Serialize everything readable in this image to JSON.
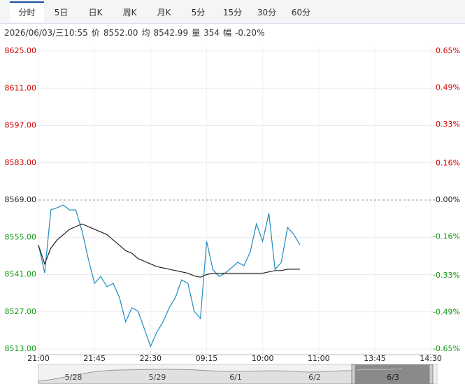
{
  "tabs": [
    "分时",
    "5日",
    "日K",
    "周K",
    "月K",
    "5分",
    "15分",
    "30分",
    "60分"
  ],
  "info": {
    "datetime": "2026/06/03/三10:55",
    "price_label": "价",
    "price": "8552.00",
    "avg_label": "均",
    "avg": "8542.99",
    "volume_label": "量",
    "volume": "354",
    "change_label": "幅",
    "change": "-0.20%"
  },
  "navigator": {
    "dates": [
      "5/28",
      "5/29",
      "6/1",
      "6/2",
      "6/3"
    ]
  },
  "chart_data": {
    "type": "line",
    "x": [
      0,
      5,
      10,
      15,
      20,
      25,
      30,
      35,
      40,
      45,
      50,
      55,
      60,
      65,
      70,
      75,
      80,
      85,
      90,
      95,
      100,
      105,
      110,
      115,
      120,
      125,
      130,
      135,
      140,
      145,
      150,
      155,
      160,
      165,
      170,
      175,
      180,
      185,
      190,
      195,
      200,
      205,
      210
    ],
    "series": [
      {
        "color": "#1f8ac0",
        "values": [
          8552.2,
          8541.6,
          8565.3,
          8566.1,
          8567.1,
          8565.3,
          8565.3,
          8557.4,
          8546.9,
          8537.7,
          8540.3,
          8536.4,
          8537.7,
          8532.4,
          8523.2,
          8528.5,
          8527.2,
          8520.6,
          8514.0,
          8519.3,
          8523.2,
          8528.5,
          8532.4,
          8539.0,
          8537.7,
          8527.2,
          8524.5,
          8553.5,
          8542.9,
          8540.3,
          8541.6,
          8543.5,
          8545.6,
          8544.3,
          8549.5,
          8560.0,
          8553.5,
          8564.0,
          8542.9,
          8545.6,
          8558.7,
          8556.1,
          8552.1
        ]
      },
      {
        "color": "#222222",
        "values": [
          8552,
          8545,
          8551,
          8554,
          8556,
          8558,
          8559,
          8560,
          8559,
          8558,
          8557,
          8556,
          8554,
          8552,
          8550,
          8549,
          8547,
          8546,
          8545,
          8544,
          8543.5,
          8543,
          8542.5,
          8542,
          8541.5,
          8540.5,
          8540,
          8541,
          8541.5,
          8541.5,
          8541.5,
          8541.5,
          8541.5,
          8541.5,
          8541.5,
          8541.5,
          8541.5,
          8542,
          8542.5,
          8542.5,
          8543,
          8543,
          8543
        ]
      }
    ],
    "xlim": [
      0,
      320
    ],
    "xticks": [
      {
        "value": 0,
        "label": "21:00"
      },
      {
        "value": 45,
        "label": "21:45"
      },
      {
        "value": 90,
        "label": "22:30"
      },
      {
        "value": 135,
        "label": "09:15"
      },
      {
        "value": 180,
        "label": "10:00"
      },
      {
        "value": 225,
        "label": "11:00"
      },
      {
        "value": 270,
        "label": "13:45"
      },
      {
        "value": 315,
        "label": "14:30"
      }
    ],
    "ylim": [
      8513,
      8625
    ],
    "yticks": [
      {
        "value": 8625,
        "label": "8625.00"
      },
      {
        "value": 8611,
        "label": "8611.00"
      },
      {
        "value": 8597,
        "label": "8597.00"
      },
      {
        "value": 8583,
        "label": "8583.00"
      },
      {
        "value": 8569,
        "label": "8569.00"
      },
      {
        "value": 8555,
        "label": "8555.00"
      },
      {
        "value": 8541,
        "label": "8541.00"
      },
      {
        "value": 8527,
        "label": "8527.00"
      },
      {
        "value": 8513,
        "label": "8513.00"
      }
    ],
    "y2lim": [
      -0.65,
      0.65
    ],
    "y2ticks": [
      {
        "value": 0.65,
        "label": "0.65%"
      },
      {
        "value": 0.49,
        "label": "0.49%"
      },
      {
        "value": 0.33,
        "label": "0.33%"
      },
      {
        "value": 0.16,
        "label": "0.16%"
      },
      {
        "value": 0,
        "label": "0.00%"
      },
      {
        "value": -0.16,
        "label": "-0.16%"
      },
      {
        "value": -0.33,
        "label": "-0.33%"
      },
      {
        "value": -0.49,
        "label": "-0.49%"
      },
      {
        "value": -0.65,
        "label": "-0.65%"
      }
    ],
    "reference": 8569,
    "up_color": "#d40000",
    "down_color": "#119911",
    "flat_color": "#222222",
    "grid": true
  }
}
